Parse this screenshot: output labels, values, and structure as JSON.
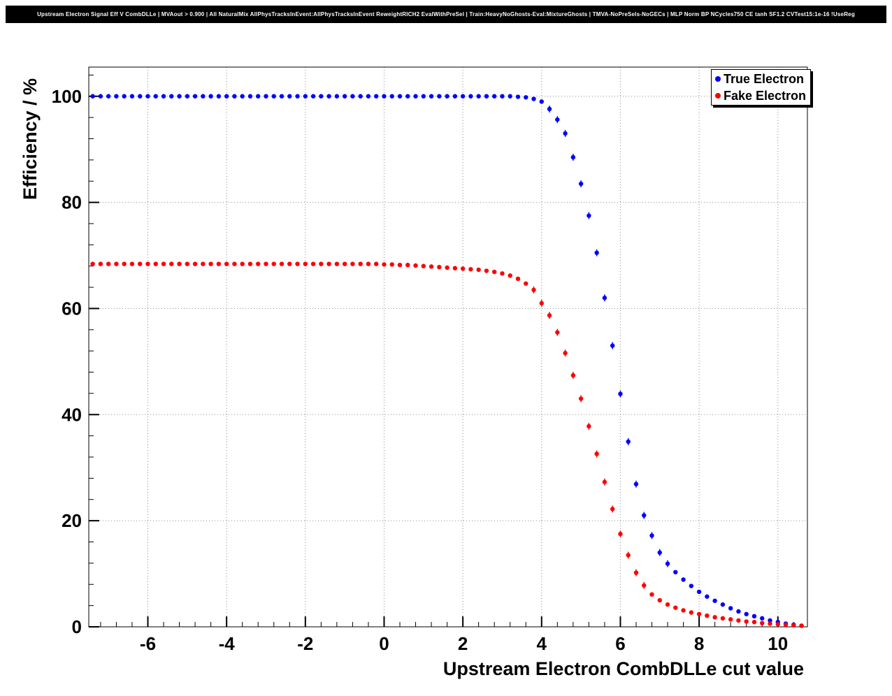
{
  "title": "Upstream Electron Signal Eff V CombDLLe | MVAout > 0.900 | All NaturalMix AllPhysTracksInEvent:AllPhysTracksInEvent ReweightRICH2 EvalWithPreSel | Train:HeavyNoGhosts-Eval:MixtureGhosts | TMVA-NoPreSels-NoGECs | MLP Norm BP NCycles750 CE tanh SF1.2 CVTest15:1e-16 !UseReg",
  "chart_data": {
    "type": "scatter",
    "title": "Upstream Electron Signal Eff V CombDLLe",
    "xlabel": "Upstream Electron CombDLLe cut value",
    "ylabel": "Efficiency / %",
    "xlim": [
      -7.5,
      10.75
    ],
    "ylim": [
      0,
      105.5
    ],
    "x_ticks": [
      -6,
      -4,
      -2,
      0,
      2,
      4,
      6,
      8,
      10
    ],
    "y_ticks": [
      0,
      20,
      40,
      60,
      80,
      100
    ],
    "grid": true,
    "grid_style": "dotted",
    "legend_position": "top-right",
    "x": [
      -7.4,
      -7.2,
      -7,
      -6.8,
      -6.6,
      -6.4,
      -6.2,
      -6,
      -5.8,
      -5.6,
      -5.4,
      -5.2,
      -5,
      -4.8,
      -4.6,
      -4.4,
      -4.2,
      -4,
      -3.8,
      -3.6,
      -3.4,
      -3.2,
      -3,
      -2.8,
      -2.6,
      -2.4,
      -2.2,
      -2,
      -1.8,
      -1.6,
      -1.4,
      -1.2,
      -1,
      -0.8,
      -0.6,
      -0.4,
      -0.2,
      0,
      0.2,
      0.4,
      0.6,
      0.8,
      1,
      1.2,
      1.4,
      1.6,
      1.8,
      2,
      2.2,
      2.4,
      2.6,
      2.8,
      3,
      3.2,
      3.4,
      3.6,
      3.8,
      4,
      4.2,
      4.4,
      4.6,
      4.8,
      5,
      5.2,
      5.4,
      5.6,
      5.8,
      6,
      6.2,
      6.4,
      6.6,
      6.8,
      7,
      7.2,
      7.4,
      7.6,
      7.8,
      8,
      8.2,
      8.4,
      8.6,
      8.8,
      9,
      9.2,
      9.4,
      9.6,
      9.8,
      10,
      10.2,
      10.4,
      10.6
    ],
    "series": [
      {
        "name": "True Electron",
        "color": "#0000ff",
        "values": [
          100,
          100,
          100,
          100,
          100,
          100,
          100,
          100,
          100,
          100,
          100,
          100,
          100,
          100,
          100,
          100,
          100,
          100,
          100,
          100,
          100,
          100,
          100,
          100,
          100,
          100,
          100,
          100,
          100,
          100,
          100,
          100,
          100,
          100,
          100,
          100,
          100,
          100,
          100,
          100,
          100,
          100,
          100,
          100,
          100,
          100,
          100,
          100,
          100,
          100,
          100,
          100,
          100,
          100,
          99.9,
          99.8,
          99.5,
          99,
          97.6,
          95.6,
          93,
          88.5,
          83.5,
          77.5,
          70.5,
          62,
          53,
          43.9,
          34.9,
          26.9,
          21,
          17.2,
          14,
          11.9,
          10.3,
          8.9,
          7.7,
          6.6,
          5.7,
          4.9,
          4.2,
          3.5,
          2.9,
          2.4,
          2,
          1.6,
          1.2,
          0.9,
          0.6,
          0.4,
          0.2
        ]
      },
      {
        "name": "Fake Electron",
        "color": "#ff0000",
        "values": [
          68.4,
          68.4,
          68.4,
          68.4,
          68.4,
          68.4,
          68.4,
          68.4,
          68.4,
          68.4,
          68.4,
          68.4,
          68.4,
          68.4,
          68.4,
          68.4,
          68.4,
          68.4,
          68.4,
          68.4,
          68.4,
          68.4,
          68.4,
          68.4,
          68.4,
          68.4,
          68.4,
          68.4,
          68.4,
          68.4,
          68.4,
          68.4,
          68.4,
          68.4,
          68.4,
          68.4,
          68.4,
          68.3,
          68.3,
          68.2,
          68.2,
          68.1,
          68,
          67.9,
          67.8,
          67.7,
          67.6,
          67.5,
          67.4,
          67.3,
          67.1,
          66.9,
          66.6,
          66.2,
          65.6,
          64.7,
          63.5,
          61,
          58.7,
          55.5,
          51.6,
          47.4,
          43,
          37.8,
          32.6,
          27.3,
          22.2,
          17.5,
          13.5,
          10.2,
          7.8,
          6.1,
          5,
          4.2,
          3.6,
          3.1,
          2.7,
          2.4,
          2.1,
          1.8,
          1.6,
          1.4,
          1.2,
          1,
          0.9,
          0.7,
          0.6,
          0.5,
          0.4,
          0.3,
          0.2
        ]
      }
    ]
  }
}
